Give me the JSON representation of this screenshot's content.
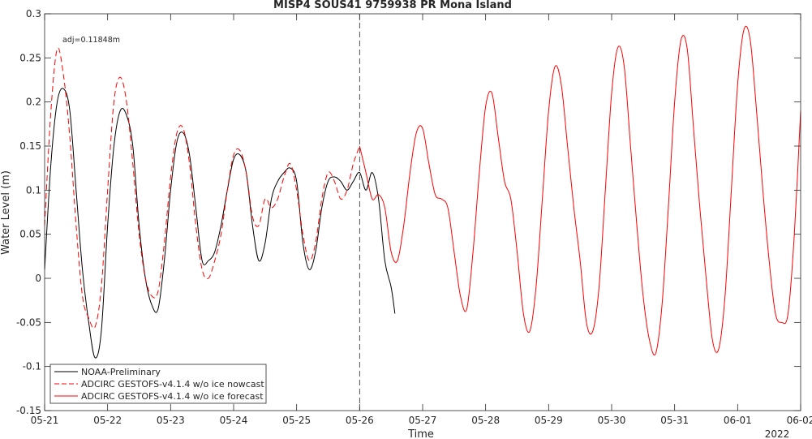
{
  "chart_data": {
    "type": "line",
    "title": "MISP4 SOUS41 9759938 PR Mona Island",
    "xlabel": "Time",
    "ylabel": "Water Level (m)",
    "x_ticks": [
      "05-21",
      "05-22",
      "05-23",
      "05-24",
      "05-25",
      "05-26",
      "05-27",
      "05-28",
      "05-29",
      "05-30",
      "05-31",
      "06-01",
      "06-02"
    ],
    "x_year_label": "2022",
    "xlim_days": [
      0,
      12
    ],
    "ylim": [
      -0.15,
      0.3
    ],
    "y_ticks": [
      -0.15,
      -0.1,
      -0.05,
      0,
      0.05,
      0.1,
      0.15,
      0.2,
      0.25,
      0.3
    ],
    "y_tick_labels": [
      "-0.15",
      "-0.1",
      "-0.05",
      "0",
      "0.05",
      "0.1",
      "0.15",
      "0.2",
      "0.25",
      "0.3"
    ],
    "forecast_start_day": 5,
    "annotation": "adj=0.11848m",
    "legend_position": "bottom-left",
    "colors": {
      "observed": "#000000",
      "nowcast": "#ff0000",
      "forecast": "#ff0000"
    },
    "series": [
      {
        "name": "NOAA-Preliminary",
        "style": "solid",
        "color": "#000000",
        "x": [
          0,
          0.1,
          0.2,
          0.3,
          0.4,
          0.5,
          0.6,
          0.7,
          0.8,
          0.9,
          1.0,
          1.1,
          1.2,
          1.3,
          1.4,
          1.5,
          1.6,
          1.7,
          1.8,
          1.9,
          2.0,
          2.1,
          2.2,
          2.3,
          2.4,
          2.5,
          2.6,
          2.7,
          2.8,
          2.9,
          3.0,
          3.1,
          3.2,
          3.3,
          3.4,
          3.5,
          3.6,
          3.7,
          3.8,
          3.9,
          4.0,
          4.1,
          4.2,
          4.3,
          4.4,
          4.5,
          4.6,
          4.7,
          4.8,
          4.9,
          5.0,
          5.1,
          5.2,
          5.3,
          5.4,
          5.5,
          5.56
        ],
        "y": [
          0.01,
          0.13,
          0.2,
          0.215,
          0.19,
          0.1,
          0.01,
          -0.05,
          -0.09,
          -0.06,
          0.06,
          0.15,
          0.19,
          0.185,
          0.15,
          0.06,
          0.0,
          -0.03,
          -0.035,
          0.02,
          0.1,
          0.155,
          0.165,
          0.14,
          0.08,
          0.02,
          0.02,
          0.03,
          0.06,
          0.1,
          0.135,
          0.14,
          0.12,
          0.06,
          0.02,
          0.04,
          0.09,
          0.11,
          0.12,
          0.125,
          0.11,
          0.04,
          0.01,
          0.03,
          0.08,
          0.11,
          0.115,
          0.11,
          0.1,
          0.11,
          0.12,
          0.1,
          0.12,
          0.09,
          0.02,
          -0.01,
          -0.04
        ]
      },
      {
        "name": "ADCIRC GESTOFS-v4.1.4 w/o ice nowcast",
        "style": "dashed",
        "color": "#ff0000",
        "x": [
          0,
          0.1,
          0.2,
          0.3,
          0.4,
          0.5,
          0.6,
          0.7,
          0.8,
          0.9,
          1.0,
          1.1,
          1.2,
          1.3,
          1.4,
          1.5,
          1.6,
          1.7,
          1.8,
          1.9,
          2.0,
          2.1,
          2.2,
          2.3,
          2.4,
          2.5,
          2.6,
          2.7,
          2.8,
          2.9,
          3.0,
          3.1,
          3.2,
          3.3,
          3.4,
          3.5,
          3.6,
          3.7,
          3.8,
          3.9,
          4.0,
          4.1,
          4.2,
          4.3,
          4.4,
          4.5,
          4.6,
          4.7,
          4.8,
          4.9,
          5.0
        ],
        "y": [
          0.06,
          0.19,
          0.26,
          0.23,
          0.16,
          0.06,
          -0.02,
          -0.045,
          -0.055,
          -0.01,
          0.1,
          0.2,
          0.228,
          0.2,
          0.13,
          0.05,
          0.0,
          -0.02,
          -0.015,
          0.04,
          0.115,
          0.165,
          0.17,
          0.13,
          0.06,
          0.01,
          0.0,
          0.02,
          0.05,
          0.1,
          0.14,
          0.145,
          0.12,
          0.07,
          0.06,
          0.09,
          0.08,
          0.09,
          0.115,
          0.13,
          0.1,
          0.05,
          0.02,
          0.04,
          0.09,
          0.12,
          0.11,
          0.09,
          0.1,
          0.13,
          0.15
        ]
      },
      {
        "name": "ADCIRC GESTOFS-v4.1.4 w/o ice forecast",
        "style": "solid",
        "color": "#ff0000",
        "x": [
          5.0,
          5.1,
          5.2,
          5.3,
          5.4,
          5.5,
          5.6,
          5.7,
          5.8,
          5.9,
          6.0,
          6.1,
          6.2,
          6.3,
          6.4,
          6.5,
          6.6,
          6.7,
          6.8,
          6.9,
          7.0,
          7.1,
          7.2,
          7.3,
          7.4,
          7.5,
          7.6,
          7.7,
          7.8,
          7.9,
          8.0,
          8.1,
          8.2,
          8.3,
          8.4,
          8.5,
          8.6,
          8.7,
          8.8,
          8.9,
          9.0,
          9.1,
          9.2,
          9.3,
          9.4,
          9.5,
          9.6,
          9.7,
          9.8,
          9.9,
          10.0,
          10.1,
          10.2,
          10.3,
          10.4,
          10.5,
          10.6,
          10.7,
          10.8,
          10.9,
          11.0,
          11.1,
          11.2,
          11.3,
          11.4,
          11.5,
          11.6,
          11.7,
          11.8,
          11.9,
          12.0
        ],
        "y": [
          0.15,
          0.12,
          0.09,
          0.095,
          0.08,
          0.03,
          0.02,
          0.06,
          0.12,
          0.165,
          0.17,
          0.13,
          0.095,
          0.09,
          0.08,
          0.03,
          -0.02,
          -0.035,
          0.03,
          0.12,
          0.195,
          0.21,
          0.16,
          0.11,
          0.09,
          0.03,
          -0.04,
          -0.06,
          -0.01,
          0.09,
          0.19,
          0.24,
          0.22,
          0.15,
          0.08,
          0.02,
          -0.05,
          -0.06,
          -0.01,
          0.1,
          0.21,
          0.262,
          0.24,
          0.15,
          0.06,
          -0.02,
          -0.07,
          -0.085,
          -0.03,
          0.08,
          0.2,
          0.27,
          0.26,
          0.17,
          0.08,
          0.0,
          -0.07,
          -0.08,
          -0.02,
          0.1,
          0.22,
          0.282,
          0.27,
          0.19,
          0.1,
          0.02,
          -0.04,
          -0.05,
          -0.04,
          0.05,
          0.19
        ]
      }
    ]
  }
}
